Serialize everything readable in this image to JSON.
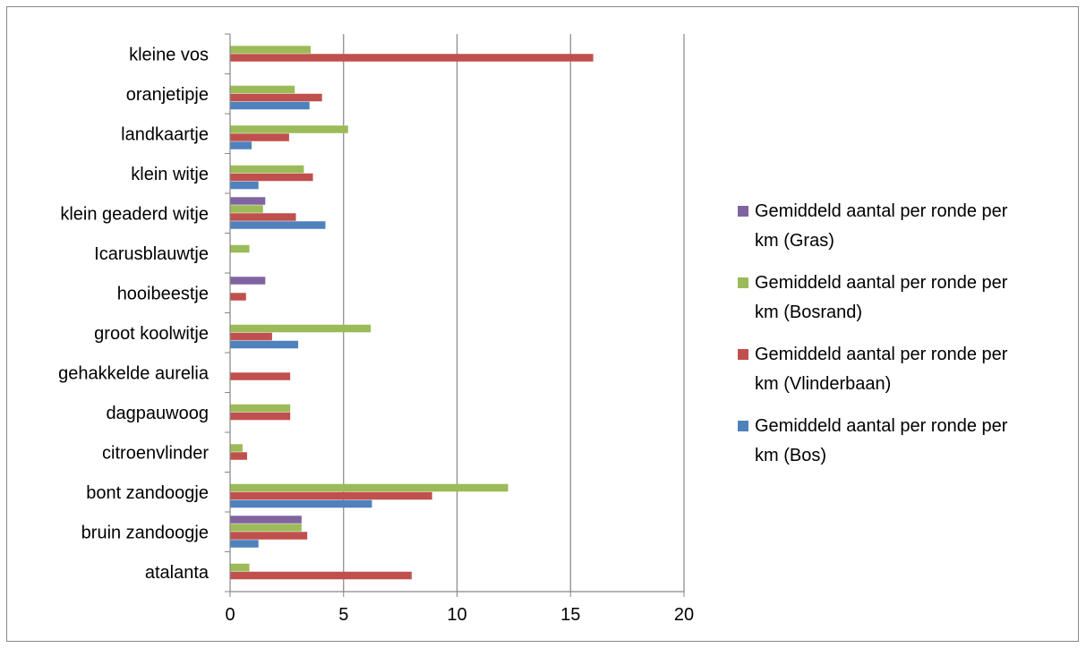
{
  "chart_data": {
    "type": "bar",
    "orientation": "horizontal",
    "title": "",
    "xlabel": "",
    "ylabel": "",
    "xlim": [
      0,
      20
    ],
    "x_ticks": [
      0,
      5,
      10,
      15,
      20
    ],
    "grid": "vertical major gridlines",
    "legend_position": "right",
    "categories": [
      "atalanta",
      "bruin zandoogje",
      "bont zandoogje",
      "citroenvlinder",
      "dagpauwoog",
      "gehakkelde aurelia",
      "groot koolwitje",
      "hooibeestje",
      "Icarusblauwtje",
      "klein geaderd witje",
      "klein witje",
      "landkaartje",
      "oranjetipje",
      "kleine vos"
    ],
    "series": [
      {
        "name": "Gemiddeld aantal per ronde per km (Bos)",
        "color": "#4F81BD",
        "values": [
          0,
          1.25,
          6.25,
          0,
          0,
          0,
          3.0,
          0,
          0,
          4.2,
          1.25,
          0.95,
          3.5,
          0
        ]
      },
      {
        "name": "Gemiddeld aantal per ronde per km (Vlinderbaan)",
        "color": "#C0504D",
        "values": [
          8.0,
          3.4,
          8.9,
          0.75,
          2.65,
          2.65,
          1.85,
          0.7,
          0,
          2.9,
          3.65,
          2.6,
          4.05,
          16.0
        ]
      },
      {
        "name": "Gemiddeld aantal per ronde per km (Bosrand)",
        "color": "#9BBB59",
        "values": [
          0.85,
          3.15,
          12.25,
          0.55,
          2.65,
          0,
          6.2,
          0,
          0.85,
          1.45,
          3.25,
          5.2,
          2.85,
          3.55
        ]
      },
      {
        "name": "Gemiddeld aantal per ronde per km (Gras)",
        "color": "#8064A2",
        "values": [
          0,
          3.15,
          0,
          0,
          0,
          0,
          0,
          1.55,
          0,
          1.55,
          0,
          0,
          0,
          0
        ]
      }
    ],
    "legend": [
      {
        "line1": "Gemiddeld aantal per ronde per",
        "line2": "km (Gras)",
        "color": "#8064A2"
      },
      {
        "line1": "Gemiddeld aantal per ronde per",
        "line2": "km (Bosrand)",
        "color": "#9BBB59"
      },
      {
        "line1": "Gemiddeld aantal per ronde per",
        "line2": "km (Vlinderbaan)",
        "color": "#C0504D"
      },
      {
        "line1": "Gemiddeld aantal per ronde per",
        "line2": "km (Bos)",
        "color": "#4F81BD"
      }
    ]
  }
}
